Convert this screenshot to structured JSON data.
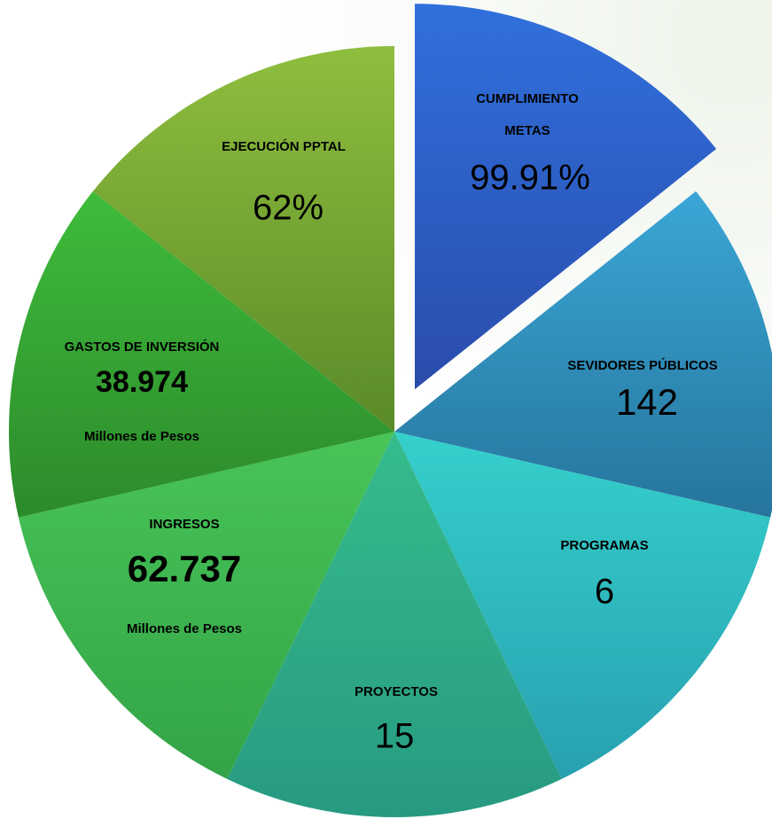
{
  "segments": [
    {
      "label": [
        "CUMPLIMIENTO",
        "METAS"
      ],
      "value": "99.91%"
    },
    {
      "label": [
        "SEVIDORES PÚBLICOS"
      ],
      "value": "142"
    },
    {
      "label": [
        "PROGRAMAS"
      ],
      "value": "6"
    },
    {
      "label": [
        "PROYECTOS"
      ],
      "value": "15"
    },
    {
      "label": [
        "INGRESOS"
      ],
      "value": "62.737",
      "unit": "Millones de Pesos"
    },
    {
      "label": [
        "GASTOS DE INVERSIÓN"
      ],
      "value": "38.974",
      "unit": "Millones de Pesos"
    },
    {
      "label": [
        "EJECUCIÓN PPTAL"
      ],
      "value": "62%"
    }
  ]
}
